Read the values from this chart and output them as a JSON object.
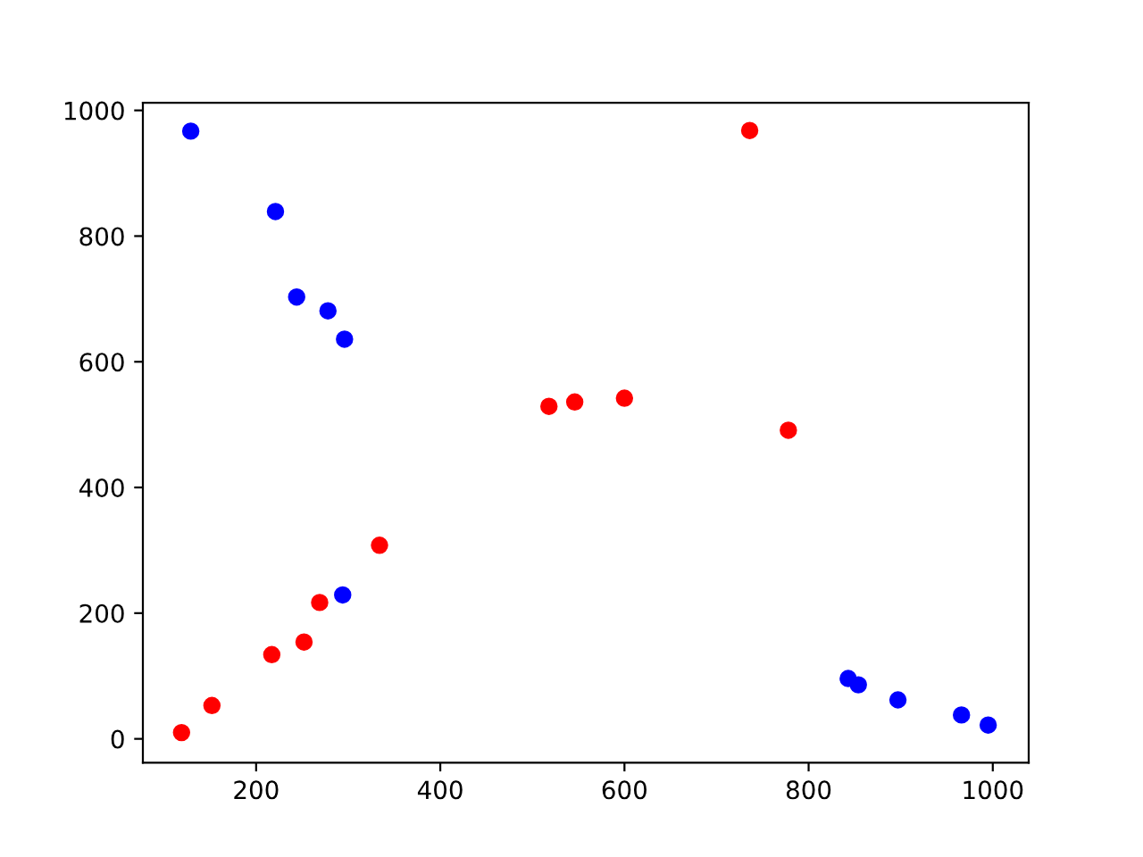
{
  "chart_data": {
    "type": "scatter",
    "marker": "circle",
    "grid": false,
    "legend": false,
    "xlim": [
      77,
      1039
    ],
    "ylim": [
      -38,
      1012
    ],
    "xticks": [
      200,
      400,
      600,
      800,
      1000
    ],
    "yticks": [
      0,
      200,
      400,
      600,
      800,
      1000
    ],
    "series": [
      {
        "color": "#0000ff",
        "x": [
          129,
          221,
          244,
          278,
          296,
          294,
          843,
          854,
          897,
          966,
          995
        ],
        "values": [
          967,
          839,
          703,
          681,
          636,
          229,
          96,
          86,
          62,
          38,
          22
        ]
      },
      {
        "color": "#ff0000",
        "x": [
          119,
          152,
          217,
          252,
          269,
          334,
          518,
          546,
          600,
          736,
          778
        ],
        "values": [
          10,
          53,
          134,
          154,
          217,
          308,
          529,
          536,
          542,
          968,
          491
        ]
      }
    ]
  }
}
